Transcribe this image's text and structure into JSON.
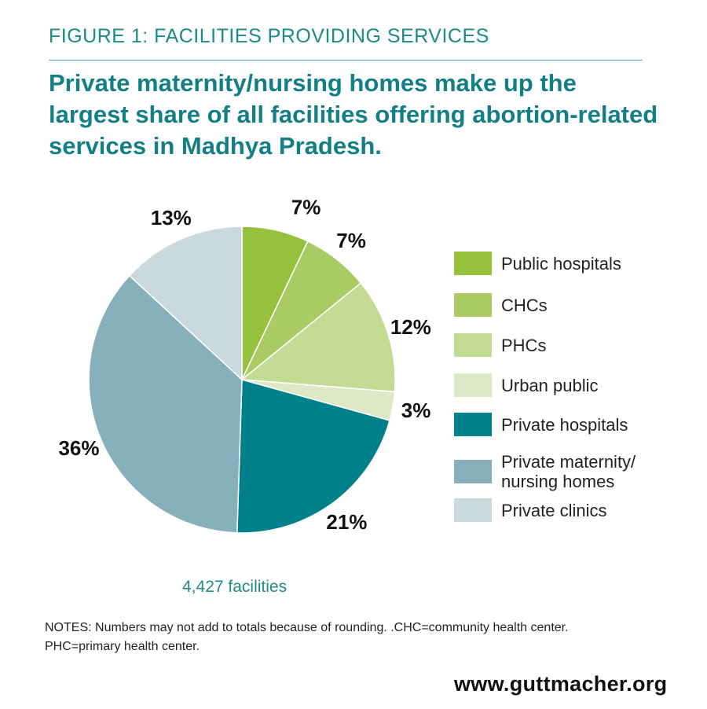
{
  "figure_label": "FIGURE 1: FACILITIES PROVIDING SERVICES",
  "headline": "Private maternity/nursing homes make up the largest share of all facilities offering abortion-related services in Madhya Pradesh.",
  "total_text": "4,427 facilities",
  "notes": "NOTES: Numbers may not add to totals because of rounding. .CHC=community health center. PHC=primary health center.",
  "source": "www.guttmacher.org",
  "chart_data": {
    "type": "pie",
    "title": "",
    "slices": [
      {
        "name": "Public hospitals",
        "value": 7,
        "label": "7%",
        "color": "#95c13d"
      },
      {
        "name": "CHCs",
        "value": 7,
        "label": "7%",
        "color": "#a9cb64"
      },
      {
        "name": "PHCs",
        "value": 12,
        "label": "12%",
        "color": "#c4db94"
      },
      {
        "name": "Urban public",
        "value": 3,
        "label": "3%",
        "color": "#dde9c4"
      },
      {
        "name": "Private hospitals",
        "value": 21,
        "label": "21%",
        "color": "#00808a"
      },
      {
        "name": "Private maternity/\nnursing homes",
        "value": 36,
        "label": "36%",
        "color": "#87b1ba"
      },
      {
        "name": "Private clinics",
        "value": 13,
        "label": "13%",
        "color": "#cad9de"
      }
    ]
  }
}
